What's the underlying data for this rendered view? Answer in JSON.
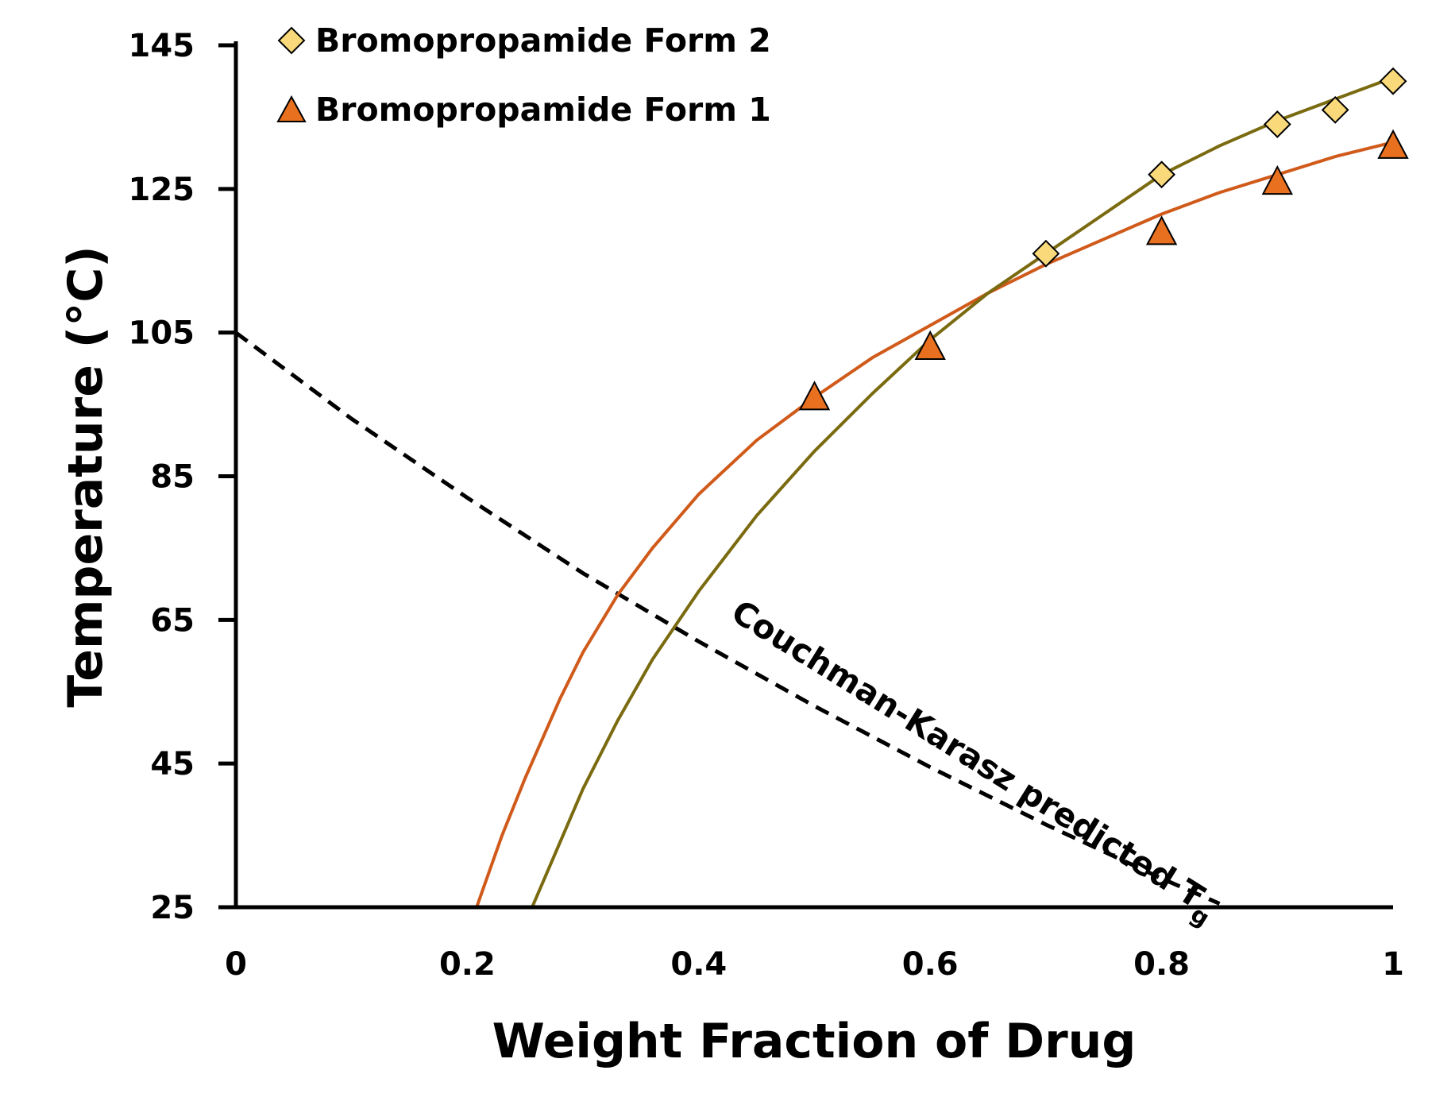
{
  "chart_data": {
    "type": "scatter",
    "xlabel": "Weight Fraction of Drug",
    "ylabel": "Temperature (°C)",
    "xlim": [
      0,
      1
    ],
    "ylim": [
      25,
      145
    ],
    "xticks": [
      "0",
      "0.2",
      "0.4",
      "0.6",
      "0.8",
      "1"
    ],
    "yticks": [
      "25",
      "45",
      "65",
      "85",
      "105",
      "125",
      "145"
    ],
    "grid": false,
    "legend_position": "top-left",
    "series": [
      {
        "name": "Bromopropamide Form 2",
        "marker": "diamond",
        "color": "#F9D97A",
        "line_color": "#7A6A10",
        "x": [
          0.7,
          0.8,
          0.9,
          0.95,
          1.0
        ],
        "y": [
          116,
          127,
          134,
          136,
          140
        ],
        "fit_curve": {
          "x": [
            0.256,
            0.28,
            0.3,
            0.33,
            0.36,
            0.4,
            0.45,
            0.5,
            0.55,
            0.6,
            0.65,
            0.7,
            0.75,
            0.8,
            0.85,
            0.9,
            0.95,
            1.0
          ],
          "y": [
            25,
            34,
            41.5,
            51,
            59.5,
            69,
            79.5,
            88.5,
            96.5,
            104,
            110.5,
            116,
            121.5,
            127,
            131,
            134.5,
            137.5,
            140.5
          ]
        }
      },
      {
        "name": "Bromopropamide Form 1",
        "marker": "triangle",
        "color": "#E8701E",
        "line_color": "#D05A1A",
        "x": [
          0.5,
          0.6,
          0.8,
          0.9,
          1.0
        ],
        "y": [
          96,
          103,
          119,
          126,
          131
        ],
        "fit_curve": {
          "x": [
            0.208,
            0.23,
            0.25,
            0.28,
            0.3,
            0.33,
            0.36,
            0.4,
            0.45,
            0.5,
            0.55,
            0.6,
            0.65,
            0.7,
            0.75,
            0.8,
            0.85,
            0.9,
            0.95,
            1.0
          ],
          "y": [
            25,
            35,
            43,
            54,
            60.5,
            68.5,
            75,
            82.5,
            90,
            96,
            101.5,
            106,
            110.5,
            114.5,
            118,
            121.5,
            124.5,
            127,
            129.5,
            131.5
          ]
        }
      }
    ],
    "reference_line": {
      "style": "dashed",
      "color": "#000000",
      "x": [
        0,
        0.1,
        0.2,
        0.3,
        0.4,
        0.5,
        0.6,
        0.7,
        0.8,
        0.85
      ],
      "y": [
        105,
        93,
        82,
        71.5,
        62,
        53,
        44.5,
        36.5,
        29,
        25.5
      ]
    },
    "annotations": [
      {
        "text": "Couchman-Karasz predicted T",
        "subscript": "g"
      }
    ]
  }
}
